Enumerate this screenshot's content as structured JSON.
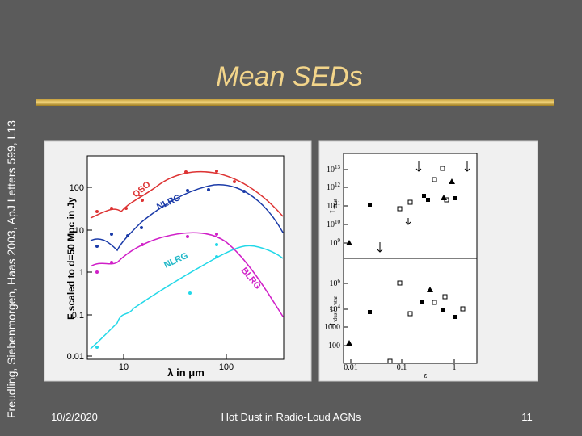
{
  "slide": {
    "side_note": "Freudling, Siebenmorgen, Haas 2003, ApJ Letters 599, L13",
    "title": "Mean SEDs",
    "footer": {
      "date": "10/2/2020",
      "text": "Hot Dust in Radio-Loud AGNs",
      "page": "11"
    }
  },
  "figure_left": {
    "y_label": "F scaled to d=50 Mpc in Jy",
    "x_label": "λ in μm",
    "yticks": [
      "100",
      "10",
      "1",
      "0.1",
      "0.01"
    ],
    "xticks": [
      "10",
      "100"
    ],
    "curve_labels": [
      "QSO",
      "NLRG",
      "NLRG",
      "BLRG"
    ]
  },
  "figure_right": {
    "top_y_label": [
      {
        "t": "L"
      },
      {
        "t": "dust",
        "sub": true
      }
    ],
    "bottom_y_label": [
      {
        "t": "L"
      },
      {
        "t": "dust",
        "sub": true
      },
      {
        "t": "/L"
      },
      {
        "t": "star",
        "sub": true
      }
    ],
    "top_yticks": [
      {
        "base": "10",
        "exp": "13"
      },
      {
        "base": "10",
        "exp": "12"
      },
      {
        "base": "10",
        "exp": "11"
      },
      {
        "base": "10",
        "exp": "10"
      },
      {
        "base": "10",
        "exp": "9"
      }
    ],
    "bottom_yticks": [
      {
        "base": "10",
        "exp": "6"
      },
      {
        "base": "10",
        "exp": "4"
      },
      {
        "base": "1000"
      },
      {
        "base": "100"
      }
    ],
    "xticks": [
      "0.01",
      "0.1",
      "1"
    ],
    "x_label": "z"
  }
}
